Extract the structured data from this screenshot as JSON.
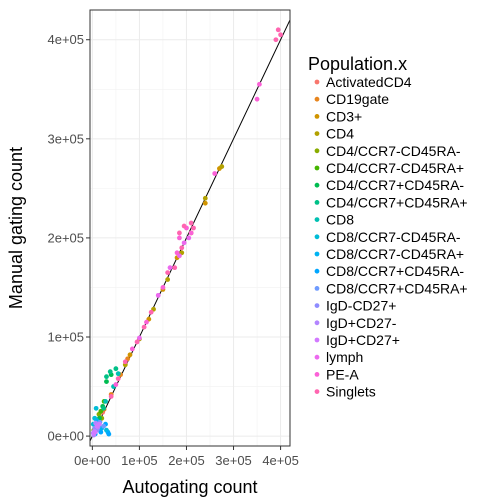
{
  "chart_data": {
    "type": "scatter",
    "xlabel": "Autogating count",
    "ylabel": "Manual gating count",
    "xlim": [
      -5000,
      420000
    ],
    "ylim": [
      -10000,
      430000
    ],
    "x_ticks": [
      0,
      100000,
      200000,
      300000,
      400000
    ],
    "x_tick_labels": [
      "0e+00",
      "1e+05",
      "2e+05",
      "3e+05",
      "4e+05"
    ],
    "y_ticks": [
      0,
      100000,
      200000,
      300000,
      400000
    ],
    "y_tick_labels": [
      "0e+00",
      "1e+05",
      "2e+05",
      "3e+05",
      "4e+05"
    ],
    "grid": true,
    "reference_line": {
      "slope": 1,
      "intercept": 0
    },
    "legend": {
      "title": "Population.x",
      "placement": "right"
    },
    "series": [
      {
        "name": "ActivatedCD4",
        "color": "#F8766D",
        "points": [
          [
            5000,
            4000
          ],
          [
            10000,
            11000
          ],
          [
            16000,
            15000
          ],
          [
            22000,
            24000
          ]
        ]
      },
      {
        "name": "CD19gate",
        "color": "#E7851E",
        "points": [
          [
            12000,
            12000
          ],
          [
            25000,
            27000
          ],
          [
            40000,
            42000
          ],
          [
            60000,
            62000
          ],
          [
            75000,
            78000
          ]
        ]
      },
      {
        "name": "CD3+",
        "color": "#D09400",
        "points": [
          [
            80000,
            82000
          ],
          [
            120000,
            118000
          ],
          [
            150000,
            148000
          ],
          [
            180000,
            180000
          ],
          [
            210000,
            205000
          ],
          [
            240000,
            235000
          ],
          [
            270000,
            270000
          ]
        ]
      },
      {
        "name": "CD4",
        "color": "#B2A100",
        "points": [
          [
            70000,
            72000
          ],
          [
            100000,
            98000
          ],
          [
            130000,
            128000
          ],
          [
            160000,
            158000
          ],
          [
            190000,
            185000
          ],
          [
            240000,
            240000
          ],
          [
            275000,
            272000
          ]
        ]
      },
      {
        "name": "CD4/CCR7-CD45RA-",
        "color": "#89AC00",
        "points": [
          [
            3000,
            6000
          ],
          [
            8000,
            9000
          ],
          [
            14000,
            22000
          ],
          [
            20000,
            18000
          ]
        ]
      },
      {
        "name": "CD4/CCR7-CD45RA+",
        "color": "#45B500",
        "points": [
          [
            6000,
            8000
          ],
          [
            10000,
            14000
          ],
          [
            18000,
            25000
          ],
          [
            25000,
            35000
          ]
        ]
      },
      {
        "name": "CD4/CCR7+CD45RA-",
        "color": "#00BC51",
        "points": [
          [
            15000,
            18000
          ],
          [
            22000,
            30000
          ],
          [
            30000,
            55000
          ],
          [
            40000,
            62000
          ]
        ]
      },
      {
        "name": "CD4/CCR7+CD45RA+",
        "color": "#00C087",
        "points": [
          [
            10000,
            10000
          ],
          [
            24000,
            28000
          ],
          [
            30000,
            60000
          ],
          [
            38000,
            65000
          ],
          [
            50000,
            68000
          ]
        ]
      },
      {
        "name": "CD8",
        "color": "#00C0B2",
        "points": [
          [
            12000,
            14000
          ],
          [
            28000,
            35000
          ],
          [
            45000,
            50000
          ],
          [
            55000,
            63000
          ]
        ]
      },
      {
        "name": "CD8/CCR7-CD45RA-",
        "color": "#00BCD6",
        "points": [
          [
            2000,
            12000
          ],
          [
            5000,
            18000
          ],
          [
            8000,
            28000
          ],
          [
            30000,
            6000
          ]
        ]
      },
      {
        "name": "CD8/CCR7-CD45RA+",
        "color": "#00B3F2",
        "points": [
          [
            4000,
            3000
          ],
          [
            9000,
            16000
          ],
          [
            20000,
            8000
          ],
          [
            33000,
            4000
          ]
        ]
      },
      {
        "name": "CD8/CCR7+CD45RA-",
        "color": "#00A6FF",
        "points": [
          [
            6000,
            2000
          ],
          [
            12000,
            8000
          ],
          [
            28000,
            12000
          ],
          [
            35000,
            2000
          ],
          [
            18000,
            4000
          ]
        ]
      },
      {
        "name": "CD8/CCR7+CD45RA+",
        "color": "#6F9BFF",
        "points": [
          [
            5000,
            4000
          ],
          [
            16000,
            14000
          ],
          [
            24000,
            10000
          ]
        ]
      },
      {
        "name": "IgD-CD27+",
        "color": "#8E8CFF",
        "points": [
          [
            2000,
            3000
          ],
          [
            5000,
            8000
          ],
          [
            10000,
            6000
          ]
        ]
      },
      {
        "name": "IgD+CD27-",
        "color": "#B385FF",
        "points": [
          [
            4000,
            5000
          ],
          [
            7000,
            13000
          ],
          [
            12000,
            9000
          ],
          [
            3000,
            1000
          ]
        ]
      },
      {
        "name": "IgD+CD27+",
        "color": "#D279FF",
        "points": [
          [
            3000,
            3000
          ],
          [
            6000,
            4000
          ],
          [
            10000,
            10000
          ],
          [
            15000,
            12000
          ]
        ]
      },
      {
        "name": "lymph",
        "color": "#EC69EF",
        "points": [
          [
            100000,
            99000
          ],
          [
            140000,
            142000
          ],
          [
            165000,
            170000
          ],
          [
            185000,
            182000
          ],
          [
            195000,
            195000
          ],
          [
            205000,
            200000
          ]
        ]
      },
      {
        "name": "PE-A",
        "color": "#FB61D7",
        "points": [
          [
            50000,
            52000
          ],
          [
            85000,
            88000
          ],
          [
            115000,
            115000
          ],
          [
            150000,
            150000
          ],
          [
            180000,
            185000
          ],
          [
            185000,
            200000
          ],
          [
            200000,
            210000
          ],
          [
            210000,
            205000
          ],
          [
            260000,
            265000
          ],
          [
            350000,
            340000
          ],
          [
            355000,
            355000
          ]
        ]
      },
      {
        "name": "Singlets",
        "color": "#FF65B0",
        "points": [
          [
            40000,
            40000
          ],
          [
            55000,
            58000
          ],
          [
            70000,
            75000
          ],
          [
            95000,
            95000
          ],
          [
            110000,
            110000
          ],
          [
            125000,
            125000
          ],
          [
            160000,
            165000
          ],
          [
            175000,
            170000
          ],
          [
            185000,
            205000
          ],
          [
            190000,
            190000
          ],
          [
            195000,
            212000
          ],
          [
            210000,
            215000
          ],
          [
            215000,
            210000
          ],
          [
            390000,
            400000
          ],
          [
            395000,
            410000
          ],
          [
            400000,
            405000
          ]
        ]
      }
    ]
  }
}
